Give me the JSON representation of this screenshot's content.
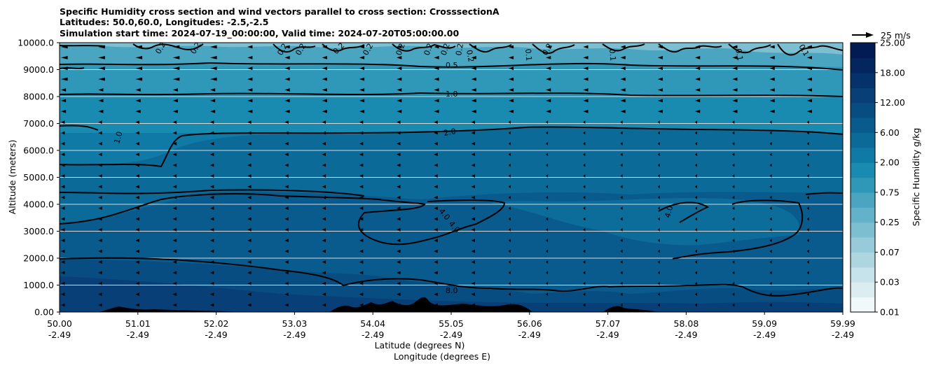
{
  "chart_data": {
    "type": "contour",
    "title_lines": [
      "Specific Humidity cross section and wind vectors parallel to cross section: CrosssectionA",
      "Latitudes: 50.0,60.0, Longitudes: -2.5,-2.5",
      "Simulation start time: 2024-07-19_00:00:00, Valid time: 2024-07-20T05:00:00.00"
    ],
    "xlabel_lat": "Latitude (degrees N)",
    "xlabel_lon": "Longitude (degrees E)",
    "ylabel": "Altitude (meters)",
    "x_lat_ticks": [
      "50.00",
      "51.01",
      "52.02",
      "53.03",
      "54.04",
      "55.05",
      "56.06",
      "57.07",
      "58.08",
      "59.09",
      "59.99"
    ],
    "x_lon_ticks": [
      "-2.49",
      "-2.49",
      "-2.49",
      "-2.49",
      "-2.49",
      "-2.49",
      "-2.49",
      "-2.49",
      "-2.49",
      "-2.49",
      "-2.49"
    ],
    "xlim": [
      50.0,
      59.99
    ],
    "ylim": [
      0,
      10000
    ],
    "y_ticks": [
      0,
      1000,
      2000,
      3000,
      4000,
      5000,
      6000,
      7000,
      8000,
      9000,
      10000
    ],
    "y_tick_labels": [
      "0.00",
      "1000.0",
      "2000.0",
      "3000.0",
      "4000.0",
      "5000.0",
      "6000.0",
      "7000.0",
      "8000.0",
      "9000.0",
      "10000.0"
    ],
    "grid": "horizontal",
    "colorbar": {
      "label": "Specific Humidity g/kg",
      "levels": [
        0.01,
        0.02,
        0.03,
        0.05,
        0.07,
        0.1,
        0.25,
        0.5,
        0.75,
        1.0,
        2.0,
        4.0,
        6.0,
        9.0,
        12.0,
        15.0,
        18.0,
        21.0,
        25.0
      ],
      "tick_labels": [
        "0.01",
        "0.03",
        "0.07",
        "0.25",
        "0.75",
        "2.00",
        "6.00",
        "12.00",
        "18.00",
        "25.00"
      ],
      "colors": [
        "#f1f8fa",
        "#dcedf1",
        "#c6e2ea",
        "#aed6e1",
        "#97cbda",
        "#7dbfd1",
        "#63b2c9",
        "#4aa5c1",
        "#2f98b8",
        "#1a8bb0",
        "#0f7aa5",
        "#0c6a99",
        "#0a5b8d",
        "#084d82",
        "#073f76",
        "#05326a",
        "#04265f",
        "#031b54"
      ]
    },
    "contour_levels": [
      0.1,
      0.2,
      0.5,
      1.0,
      2.0,
      4.0,
      8.0
    ],
    "contour_labels": [
      "0.2",
      "0.2",
      "0.2",
      "0.2",
      "0.2",
      "0.2",
      "0.2",
      "0.2",
      "0.2",
      "0.2",
      "0.2",
      "0.1",
      "0.2",
      "0.1",
      "0.1",
      "0.1",
      "0.5",
      "1.0",
      "1.0",
      "2.0",
      "4.0",
      "4.0",
      "4.0",
      "8.0"
    ],
    "wind_reference": "25 m/s",
    "wind_direction": "southward (toward lower latitude)",
    "terrain": "black terrain at surface, peaks near 54.0-56.0 and 57.0-58.0"
  }
}
